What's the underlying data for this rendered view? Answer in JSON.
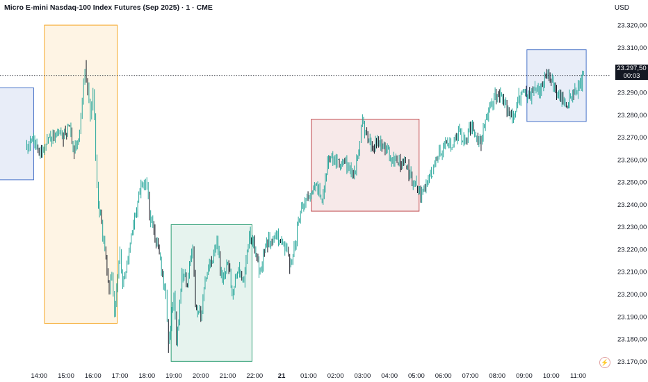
{
  "header": {
    "title": "Micro E-mini Nasdaq-100 Index Futures (Sep 2025) · 1 · CME",
    "currency": "USD"
  },
  "price_tag": {
    "price": "23.297,50",
    "countdown": "00:03"
  },
  "colors": {
    "candle": "#26a69a",
    "candle_down": "#131722",
    "box_asia": "#f5a623",
    "box_london": "#2e9e74",
    "box_ny": "#c0464a",
    "box_recent": "#4a74c9",
    "grid": "#f0f3fa",
    "axis_text": "#131722"
  },
  "chart_data": {
    "type": "line",
    "xlabel": "",
    "ylabel": "",
    "ylim": [
      23167,
      23325
    ],
    "y_ticks": [
      "23.170,00",
      "23.180,00",
      "23.190,00",
      "23.200,00",
      "23.210,00",
      "23.220,00",
      "23.230,00",
      "23.240,00",
      "23.250,00",
      "23.260,00",
      "23.270,00",
      "23.280,00",
      "23.290,00",
      "23.300,00",
      "23.310,00",
      "23.320,00"
    ],
    "x_ticks": [
      "14:00",
      "15:00",
      "16:00",
      "17:00",
      "18:00",
      "19:00",
      "20:00",
      "21:00",
      "22:00",
      "21",
      "01:00",
      "02:00",
      "03:00",
      "04:00",
      "05:00",
      "06:00",
      "07:00",
      "08:00",
      "09:00",
      "10:00",
      "11:00"
    ],
    "series": [
      {
        "values": [
          [
            13.5,
            23265
          ],
          [
            13.8,
            23270
          ],
          [
            14.0,
            23262
          ],
          [
            14.3,
            23268
          ],
          [
            14.6,
            23272
          ],
          [
            14.9,
            23270
          ],
          [
            15.1,
            23275
          ],
          [
            15.3,
            23264
          ],
          [
            15.5,
            23272
          ],
          [
            15.6,
            23285
          ],
          [
            15.7,
            23302
          ],
          [
            15.8,
            23292
          ],
          [
            15.9,
            23280
          ],
          [
            16.0,
            23290
          ],
          [
            16.1,
            23262
          ],
          [
            16.2,
            23240
          ],
          [
            16.4,
            23225
          ],
          [
            16.6,
            23200
          ],
          [
            16.7,
            23208
          ],
          [
            16.8,
            23192
          ],
          [
            17.0,
            23220
          ],
          [
            17.1,
            23205
          ],
          [
            17.3,
            23215
          ],
          [
            17.5,
            23230
          ],
          [
            17.7,
            23245
          ],
          [
            17.9,
            23250
          ],
          [
            18.0,
            23248
          ],
          [
            18.1,
            23236
          ],
          [
            18.3,
            23225
          ],
          [
            18.5,
            23215
          ],
          [
            18.7,
            23200
          ],
          [
            18.8,
            23178
          ],
          [
            19.0,
            23200
          ],
          [
            19.1,
            23178
          ],
          [
            19.3,
            23210
          ],
          [
            19.5,
            23205
          ],
          [
            19.7,
            23220
          ],
          [
            19.8,
            23195
          ],
          [
            20.0,
            23190
          ],
          [
            20.2,
            23208
          ],
          [
            20.4,
            23214
          ],
          [
            20.6,
            23225
          ],
          [
            20.8,
            23205
          ],
          [
            21.0,
            23215
          ],
          [
            21.2,
            23200
          ],
          [
            21.4,
            23212
          ],
          [
            21.6,
            23205
          ],
          [
            21.8,
            23228
          ],
          [
            22.0,
            23220
          ],
          [
            22.2,
            23210
          ],
          [
            22.4,
            23222
          ],
          [
            22.6,
            23224
          ],
          [
            22.8,
            23226
          ],
          [
            23.0,
            23222
          ],
          [
            23.2,
            23220
          ],
          [
            23.3,
            23212
          ],
          [
            23.5,
            23222
          ],
          [
            23.7,
            23238
          ],
          [
            23.9,
            23242
          ],
          [
            24.1,
            23245
          ],
          [
            24.3,
            23248
          ],
          [
            24.5,
            23242
          ],
          [
            24.7,
            23258
          ],
          [
            24.9,
            23260
          ],
          [
            25.1,
            23258
          ],
          [
            25.3,
            23260
          ],
          [
            25.5,
            23255
          ],
          [
            25.7,
            23254
          ],
          [
            25.9,
            23268
          ],
          [
            26.0,
            23277
          ],
          [
            26.2,
            23268
          ],
          [
            26.4,
            23265
          ],
          [
            26.6,
            23268
          ],
          [
            26.8,
            23266
          ],
          [
            27.0,
            23262
          ],
          [
            27.2,
            23260
          ],
          [
            27.4,
            23258
          ],
          [
            27.6,
            23257
          ],
          [
            27.8,
            23253
          ],
          [
            28.0,
            23248
          ],
          [
            28.2,
            23245
          ],
          [
            28.4,
            23250
          ],
          [
            28.6,
            23255
          ],
          [
            28.8,
            23262
          ],
          [
            29.0,
            23265
          ],
          [
            29.2,
            23266
          ],
          [
            29.4,
            23268
          ],
          [
            29.6,
            23272
          ],
          [
            29.8,
            23268
          ],
          [
            30.0,
            23275
          ],
          [
            30.2,
            23270
          ],
          [
            30.4,
            23268
          ],
          [
            30.6,
            23278
          ],
          [
            30.8,
            23285
          ],
          [
            31.0,
            23290
          ],
          [
            31.2,
            23287
          ],
          [
            31.4,
            23283
          ],
          [
            31.6,
            23278
          ],
          [
            31.8,
            23288
          ],
          [
            32.0,
            23290
          ],
          [
            32.2,
            23288
          ],
          [
            32.4,
            23292
          ],
          [
            32.6,
            23290
          ],
          [
            32.8,
            23298
          ],
          [
            33.0,
            23296
          ],
          [
            33.2,
            23289
          ],
          [
            33.4,
            23288
          ],
          [
            33.6,
            23285
          ],
          [
            33.8,
            23290
          ],
          [
            34.0,
            23292
          ],
          [
            34.2,
            23296
          ]
        ]
      }
    ],
    "annotations": [
      {
        "x0": 14.2,
        "x1": 16.9,
        "y0": 23187,
        "y1": 23320
      },
      {
        "x0": 18.9,
        "x1": 21.9,
        "y0": 23170,
        "y1": 23231
      },
      {
        "x0": 24.1,
        "x1": 28.1,
        "y0": 23237,
        "y1": 23278
      },
      {
        "x0": 32.1,
        "x1": 34.3,
        "y0": 23277,
        "y1": 23309
      },
      {
        "x0": 12.5,
        "x1": 13.8,
        "y0": 23251,
        "y1": 23292
      }
    ],
    "current_price": 23297.5,
    "grid": false
  }
}
